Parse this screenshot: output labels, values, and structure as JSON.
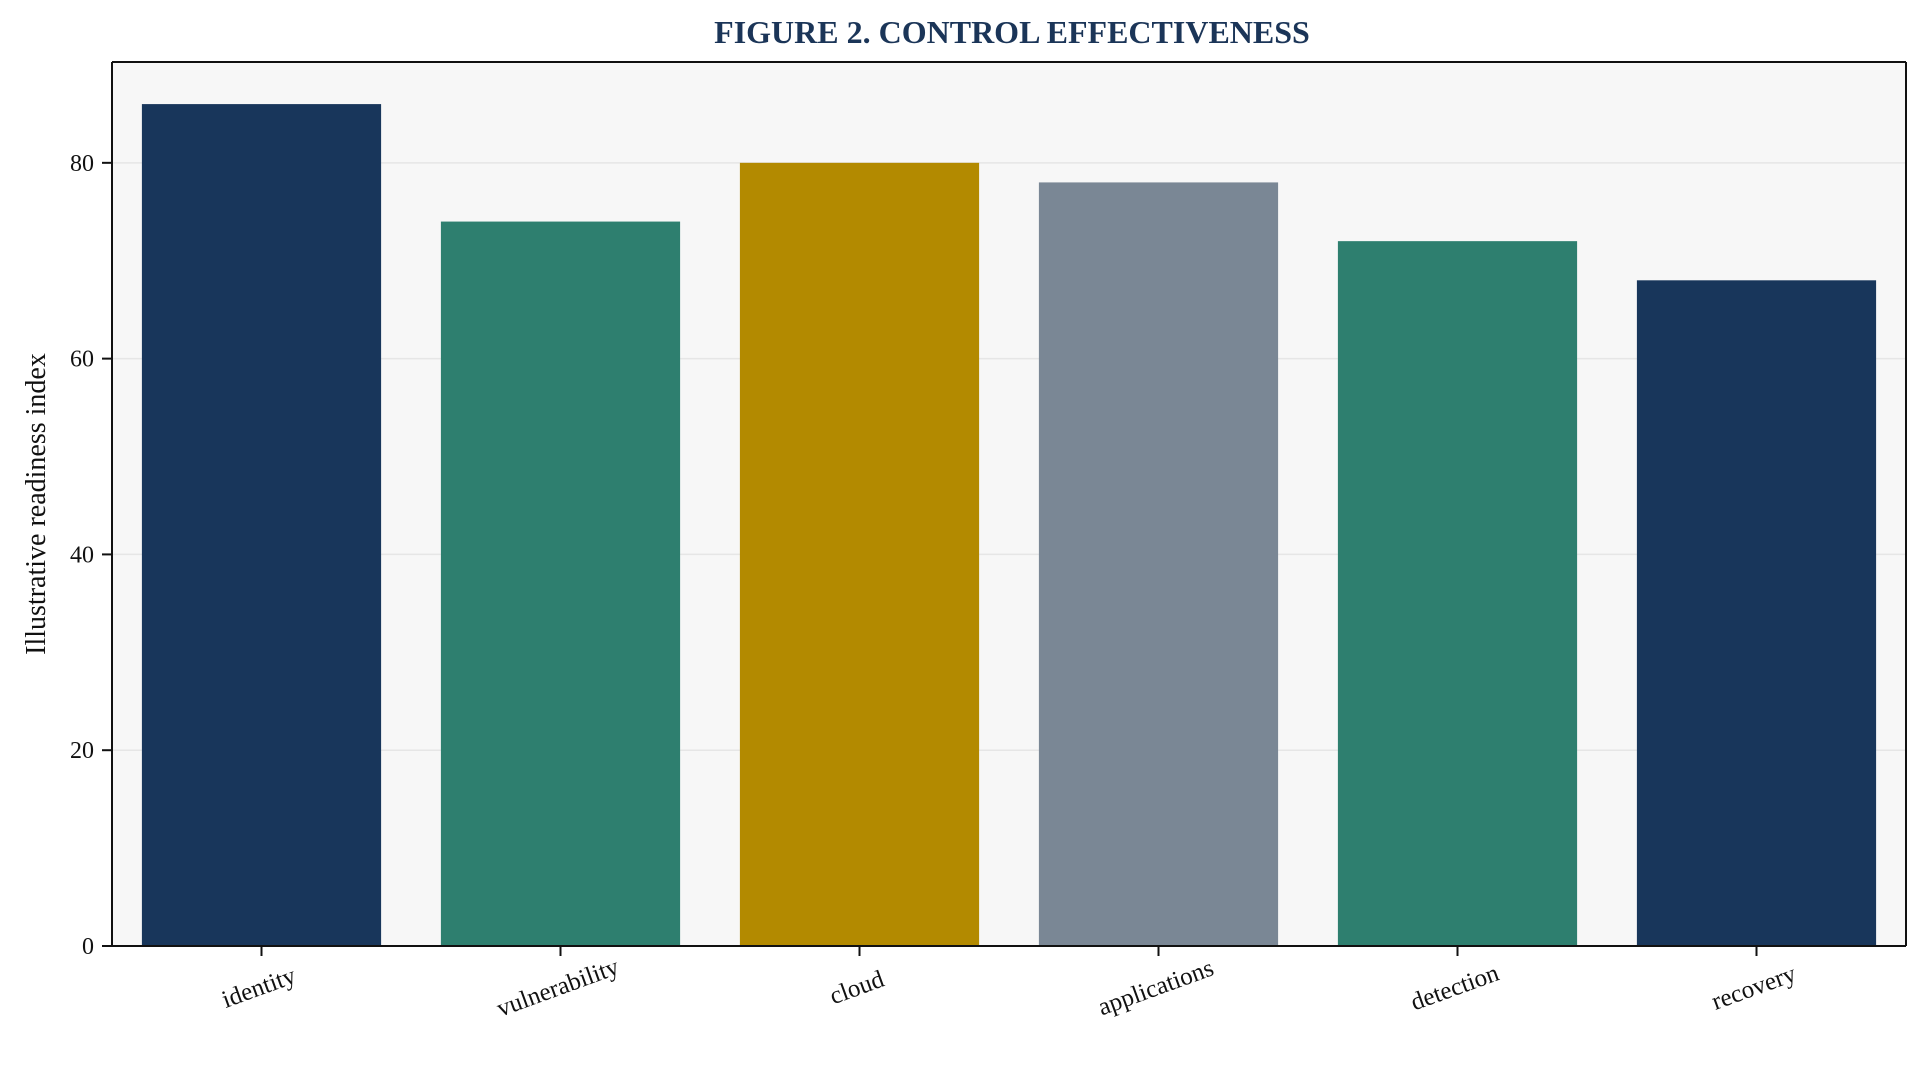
{
  "chart_data": {
    "type": "bar",
    "title": "FIGURE 2. CONTROL EFFECTIVENESS",
    "xlabel": "",
    "ylabel": "Illustrative readiness index",
    "categories": [
      "identity",
      "vulnerability",
      "cloud",
      "applications",
      "detection",
      "recovery"
    ],
    "values": [
      86,
      74,
      80,
      78,
      72,
      68
    ],
    "colors": [
      "#18365b",
      "#2e7f6f",
      "#b38a00",
      "#7a8795",
      "#2e7f6f",
      "#18365b"
    ],
    "ylim": [
      0,
      90.3
    ],
    "yticks": [
      0,
      20,
      40,
      60,
      80
    ],
    "grid": true,
    "legend": "none"
  }
}
